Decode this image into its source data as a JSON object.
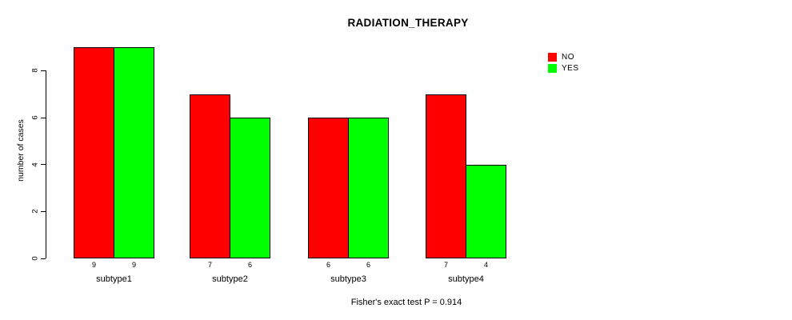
{
  "chart_data": {
    "type": "bar",
    "title": "RADIATION_THERAPY",
    "ylabel": "number of cases",
    "xlabel": "",
    "categories": [
      "subtype1",
      "subtype2",
      "subtype3",
      "subtype4"
    ],
    "series": [
      {
        "name": "NO",
        "color": "#ff0000",
        "values": [
          9,
          7,
          6,
          7
        ]
      },
      {
        "name": "YES",
        "color": "#00ff00",
        "values": [
          9,
          6,
          6,
          4
        ]
      }
    ],
    "bar_value_labels": [
      [
        9,
        9
      ],
      [
        7,
        6
      ],
      [
        6,
        6
      ],
      [
        7,
        4
      ]
    ],
    "yticks": [
      0,
      2,
      4,
      6,
      8
    ],
    "ylim": [
      0,
      8
    ],
    "grid": false,
    "legend_position": "top-right",
    "legend_entries": [
      "NO",
      "YES"
    ],
    "footer": "Fisher's exact test P = 0.914",
    "bar_border_color": "#000000",
    "background_color": "#ffffff"
  }
}
